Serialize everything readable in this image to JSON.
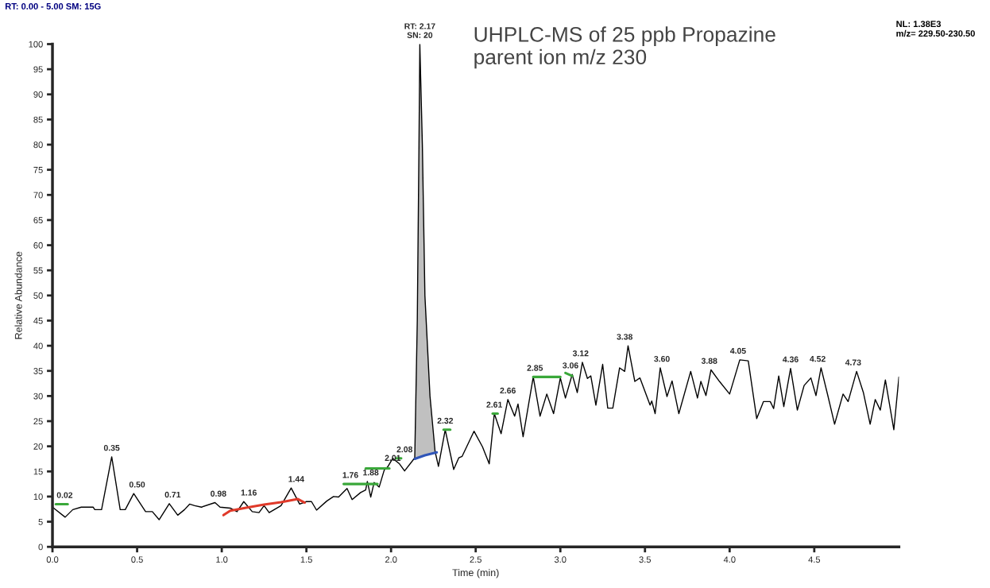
{
  "chart_data": {
    "type": "line",
    "title": "UHPLC-MS of 25 ppb Propazine\nparent ion m/z 230",
    "xlabel": "Time (min)",
    "ylabel": "Relative Abundance",
    "xlim": [
      0,
      5
    ],
    "ylim": [
      0,
      100
    ],
    "xticks": [
      {
        "value": 0,
        "label": "0.0"
      },
      {
        "value": 0.5,
        "label": "0.5"
      },
      {
        "value": 1,
        "label": "1.0"
      },
      {
        "value": 1.5,
        "label": "1.5"
      },
      {
        "value": 2,
        "label": "2.0"
      },
      {
        "value": 2.5,
        "label": "2.5"
      },
      {
        "value": 3,
        "label": "3.0"
      },
      {
        "value": 3.5,
        "label": "3.5"
      },
      {
        "value": 4,
        "label": "4.0"
      },
      {
        "value": 4.5,
        "label": "4.5"
      }
    ],
    "yticks": [
      0,
      5,
      10,
      15,
      20,
      25,
      30,
      35,
      40,
      45,
      50,
      55,
      60,
      65,
      70,
      75,
      80,
      85,
      90,
      95,
      100
    ],
    "grid": false,
    "legend": false,
    "marker": "none",
    "line_style": "solid",
    "series": [
      {
        "type": "area",
        "color": "#c0c0c0",
        "x": [
          2.14,
          2.155,
          2.165,
          2.17,
          2.185,
          2.2,
          2.23,
          2.26,
          2.27
        ],
        "values": [
          17.7,
          45,
          80,
          100,
          80,
          50,
          30,
          19,
          18.8
        ]
      },
      {
        "color": "#000000",
        "x": [
          0,
          0.075,
          0.12,
          0.17,
          0.24,
          0.25,
          0.29,
          0.35,
          0.4,
          0.43,
          0.48,
          0.55,
          0.59,
          0.63,
          0.69,
          0.74,
          0.78,
          0.81,
          0.84,
          0.88,
          0.96,
          0.99,
          1.05,
          1.09,
          1.13,
          1.18,
          1.22,
          1.25,
          1.28,
          1.31,
          1.35,
          1.41,
          1.46,
          1.5,
          1.53,
          1.56,
          1.62,
          1.66,
          1.69,
          1.74,
          1.77,
          1.82,
          1.85,
          1.86,
          1.88,
          1.9,
          1.93,
          1.96,
          1.98,
          2.01,
          2.05,
          2.08,
          2.14,
          2.155,
          2.165,
          2.17,
          2.185,
          2.2,
          2.23,
          2.26,
          2.28,
          2.32,
          2.37,
          2.4,
          2.42,
          2.49,
          2.54,
          2.58,
          2.61,
          2.65,
          2.69,
          2.73,
          2.75,
          2.78,
          2.84,
          2.88,
          2.92,
          2.96,
          3.0,
          3.03,
          3.07,
          3.1,
          3.13,
          3.16,
          3.18,
          3.21,
          3.25,
          3.28,
          3.31,
          3.35,
          3.38,
          3.4,
          3.44,
          3.47,
          3.53,
          3.54,
          3.56,
          3.59,
          3.63,
          3.66,
          3.7,
          3.77,
          3.81,
          3.83,
          3.86,
          3.89,
          3.94,
          4.0,
          4.06,
          4.11,
          4.16,
          4.2,
          4.24,
          4.26,
          4.29,
          4.32,
          4.36,
          4.4,
          4.44,
          4.48,
          4.51,
          4.54,
          4.58,
          4.62,
          4.67,
          4.7,
          4.75,
          4.79,
          4.83,
          4.86,
          4.89,
          4.92,
          4.97,
          5.0
        ],
        "values": [
          7.9,
          5.9,
          7.4,
          7.9,
          7.9,
          7.4,
          7.4,
          17.9,
          7.4,
          7.4,
          10.6,
          7.0,
          7.0,
          5.4,
          8.6,
          6.3,
          7.4,
          8.5,
          8.2,
          7.9,
          8.8,
          7.9,
          7.7,
          7.0,
          9.0,
          7.0,
          6.8,
          8.2,
          6.8,
          7.4,
          8.2,
          11.7,
          8.5,
          9.0,
          9.0,
          7.3,
          9.1,
          10.0,
          9.9,
          11.6,
          9.4,
          10.8,
          11.3,
          13.0,
          9.9,
          12.8,
          11.9,
          15.3,
          15.9,
          17.6,
          16.5,
          15.1,
          17.7,
          45,
          80,
          100,
          80,
          50,
          30,
          19,
          16,
          23.3,
          15.4,
          17.7,
          18,
          23,
          19.9,
          16.5,
          26.5,
          22.5,
          29.3,
          26,
          28.4,
          21.9,
          33.8,
          26,
          30.4,
          26.5,
          33.6,
          29.6,
          34.3,
          30.7,
          36.7,
          33.5,
          34,
          28.2,
          36.3,
          27.6,
          27.6,
          35.6,
          34.9,
          40,
          32.9,
          33.6,
          28.2,
          29,
          26.5,
          35.6,
          29.9,
          33,
          26.5,
          34.9,
          29.6,
          32.9,
          30.1,
          35.2,
          32.9,
          30.4,
          37.2,
          37,
          25.5,
          28.9,
          28.9,
          27.5,
          34,
          27.9,
          35.5,
          27.2,
          32.1,
          33.6,
          30.1,
          35.6,
          30.1,
          24.4,
          30.4,
          28.9,
          34.9,
          30.7,
          24.4,
          29.3,
          27.2,
          33.2,
          23.3,
          33.8
        ]
      },
      {
        "type": "line",
        "color": "#e03a2a",
        "x": [
          1.01,
          1.05,
          1.15,
          1.25,
          1.35,
          1.45,
          1.49
        ],
        "values": [
          6.3,
          7.2,
          7.8,
          8.4,
          8.9,
          9.5,
          8.8
        ]
      },
      {
        "type": "line",
        "color": "#2f55b8",
        "x": [
          2.14,
          2.2,
          2.27
        ],
        "values": [
          17.5,
          18.2,
          18.8
        ]
      },
      {
        "type": "line",
        "color": "#3aa83a",
        "x": [
          0.02,
          0.09
        ],
        "values": [
          8.5,
          8.5
        ]
      },
      {
        "type": "line",
        "color": "#3aa83a",
        "x": [
          1.72,
          1.92
        ],
        "values": [
          12.5,
          12.5
        ]
      },
      {
        "type": "line",
        "color": "#3aa83a",
        "x": [
          1.85,
          1.99
        ],
        "values": [
          15.6,
          15.6
        ]
      },
      {
        "type": "line",
        "color": "#3aa83a",
        "x": [
          2.03,
          2.06
        ],
        "values": [
          17.6,
          17.6
        ]
      },
      {
        "type": "line",
        "color": "#3aa83a",
        "x": [
          2.31,
          2.35
        ],
        "values": [
          23.3,
          23.3
        ]
      },
      {
        "type": "line",
        "color": "#3aa83a",
        "x": [
          2.6,
          2.63
        ],
        "values": [
          26.5,
          26.5
        ]
      },
      {
        "type": "line",
        "color": "#3aa83a",
        "x": [
          2.84,
          3.0
        ],
        "values": [
          33.8,
          33.8
        ]
      },
      {
        "type": "line",
        "color": "#3aa83a",
        "x": [
          3.03,
          3.07
        ],
        "values": [
          34.6,
          34.0
        ]
      }
    ],
    "annotations": [
      "RT: 0.00 - 5.00 SM: 15G",
      "NL: 1.38E3\nm/z= 229.50-230.50",
      {
        "text": "RT: 2.17\nSN: 20",
        "x": 2.17,
        "y": 100
      },
      {
        "text": "0.02",
        "x": 0.02,
        "y": 8.5
      },
      {
        "text": "0.35",
        "x": 0.35,
        "y": 17.9
      },
      {
        "text": "0.50",
        "x": 0.5,
        "y": 10.6
      },
      {
        "text": "0.71",
        "x": 0.71,
        "y": 8.6
      },
      {
        "text": "0.98",
        "x": 0.98,
        "y": 8.8
      },
      {
        "text": "1.16",
        "x": 1.16,
        "y": 9
      },
      {
        "text": "1.44",
        "x": 1.44,
        "y": 11.7
      },
      {
        "text": "1.76",
        "x": 1.76,
        "y": 12.5
      },
      {
        "text": "1.88",
        "x": 1.88,
        "y": 13
      },
      {
        "text": "2.01",
        "x": 2.01,
        "y": 15.9
      },
      {
        "text": "2.08",
        "x": 2.08,
        "y": 17.6
      },
      {
        "text": "2.32",
        "x": 2.32,
        "y": 23.3
      },
      {
        "text": "2.61",
        "x": 2.61,
        "y": 26.5
      },
      {
        "text": "2.66",
        "x": 2.69,
        "y": 29.3
      },
      {
        "text": "2.85",
        "x": 2.85,
        "y": 33.8
      },
      {
        "text": "3.06",
        "x": 3.06,
        "y": 34.3
      },
      {
        "text": "3.12",
        "x": 3.12,
        "y": 36.7
      },
      {
        "text": "3.38",
        "x": 3.38,
        "y": 40
      },
      {
        "text": "3.60",
        "x": 3.6,
        "y": 35.6
      },
      {
        "text": "3.88",
        "x": 3.88,
        "y": 35.2
      },
      {
        "text": "4.05",
        "x": 4.05,
        "y": 37.2
      },
      {
        "text": "4.36",
        "x": 4.36,
        "y": 35.5
      },
      {
        "text": "4.52",
        "x": 4.52,
        "y": 35.6
      },
      {
        "text": "4.73",
        "x": 4.73,
        "y": 34.9
      }
    ]
  }
}
